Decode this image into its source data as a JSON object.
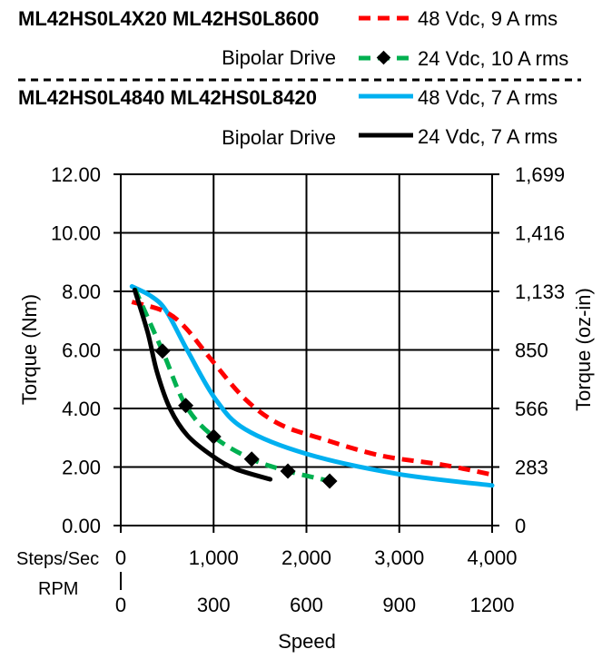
{
  "legend": {
    "groups": [
      {
        "models": "ML42HS0L4X20  ML42HS0L8600",
        "drive": "Bipolar Drive",
        "entries": [
          "48 Vdc, 9 A rms",
          "24 Vdc, 10 A rms"
        ]
      },
      {
        "models": "ML42HS0L4840  ML42HS0L8420",
        "drive": "Bipolar Drive",
        "entries": [
          "48 Vdc, 7 A rms",
          "24 Vdc, 7 A rms"
        ]
      }
    ]
  },
  "chart_data": {
    "type": "line",
    "xlabel": "Speed",
    "ylabel": "Torque (Nm)",
    "y2label": "Torque (oz-in)",
    "x_axis_rows": [
      {
        "label": "Steps/Sec",
        "ticks": [
          "0",
          "1,000",
          "2,000",
          "3,000",
          "4,000"
        ]
      },
      {
        "label": "RPM",
        "ticks": [
          "0",
          "300",
          "600",
          "900",
          "1200"
        ]
      }
    ],
    "xlim": [
      0,
      4000
    ],
    "ylim": [
      0,
      12
    ],
    "yticks": [
      "0.00",
      "2.00",
      "4.00",
      "6.00",
      "8.00",
      "10.00",
      "12.00"
    ],
    "y2ticks": [
      "0",
      "283",
      "566",
      "850",
      "1,133",
      "1,416",
      "1,699"
    ],
    "grid": true,
    "legend_position": "top",
    "series": [
      {
        "name": "48 Vdc, 9 A rms",
        "color": "#ff0000",
        "style": "dashed",
        "x": [
          120,
          460,
          685,
          980,
          1340,
          1700,
          2150,
          2800,
          3460,
          4000
        ],
        "y": [
          7.64,
          7.33,
          6.8,
          5.65,
          4.32,
          3.48,
          2.98,
          2.39,
          2.08,
          1.74
        ]
      },
      {
        "name": "24 Vdc, 10 A rms",
        "color": "#00b050",
        "style": "dashed-diamond",
        "x": [
          150,
          450,
          700,
          1000,
          1410,
          1800,
          2250
        ],
        "y": [
          8.1,
          5.96,
          4.1,
          3.04,
          2.27,
          1.86,
          1.52
        ]
      },
      {
        "name": "48 Vdc, 7 A rms",
        "color": "#00b0f0",
        "style": "solid",
        "x": [
          120,
          330,
          490,
          720,
          1020,
          1340,
          2000,
          2970,
          4000
        ],
        "y": [
          8.17,
          7.83,
          7.33,
          5.97,
          4.32,
          3.29,
          2.45,
          1.77,
          1.37
        ]
      },
      {
        "name": "24 Vdc, 7 A rms",
        "color": "#000000",
        "style": "solid",
        "x": [
          150,
          290,
          390,
          530,
          720,
          1000,
          1240,
          1610
        ],
        "y": [
          8.05,
          6.6,
          5.25,
          4.0,
          3.07,
          2.35,
          1.93,
          1.58
        ]
      }
    ]
  }
}
